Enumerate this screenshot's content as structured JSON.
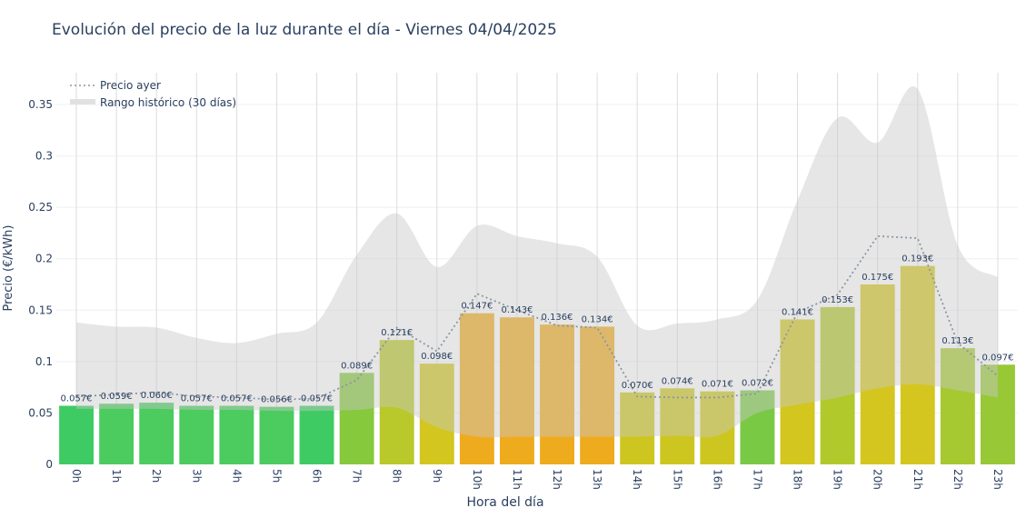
{
  "chart_data": {
    "type": "bar",
    "title": "Evolución del precio de la luz durante el día - Viernes 04/04/2025",
    "xlabel": "Hora del día",
    "ylabel": "Precio (€/kWh)",
    "ylim": [
      0,
      0.375
    ],
    "yticks": [
      0,
      0.05,
      0.1,
      0.15,
      0.2,
      0.25,
      0.3,
      0.35
    ],
    "ytick_labels": [
      "0",
      "0.05",
      "0.1",
      "0.15",
      "0.2",
      "0.25",
      "0.3",
      "0.35"
    ],
    "grid": true,
    "legend_position": "top-left",
    "categories": [
      "0h",
      "1h",
      "2h",
      "3h",
      "4h",
      "5h",
      "6h",
      "7h",
      "8h",
      "9h",
      "10h",
      "11h",
      "12h",
      "13h",
      "14h",
      "15h",
      "16h",
      "17h",
      "18h",
      "19h",
      "20h",
      "21h",
      "22h",
      "23h"
    ],
    "values": [
      0.057,
      0.059,
      0.06,
      0.057,
      0.057,
      0.056,
      0.057,
      0.089,
      0.121,
      0.098,
      0.147,
      0.143,
      0.136,
      0.134,
      0.07,
      0.074,
      0.071,
      0.072,
      0.141,
      0.153,
      0.175,
      0.193,
      0.113,
      0.097
    ],
    "labels": [
      "0.057€",
      "0.059€",
      "0.060€",
      "0.057€",
      "0.057€",
      "0.056€",
      "0.057€",
      "0.089€",
      "0.121€",
      "0.098€",
      "0.147€",
      "0.143€",
      "0.136€",
      "0.134€",
      "0.070€",
      "0.074€",
      "0.071€",
      "0.072€",
      "0.141€",
      "0.153€",
      "0.175€",
      "0.193€",
      "0.113€",
      "0.097€"
    ],
    "bar_colors": [
      "#3fcb63",
      "#4ccb5f",
      "#4ccb5f",
      "#4ccb5f",
      "#4ccb5f",
      "#4ccb5f",
      "#3fcb63",
      "#86c93c",
      "#b9c82a",
      "#d2c61f",
      "#eeab1e",
      "#eeab1e",
      "#eeab1e",
      "#eeab1e",
      "#cdc620",
      "#cdc620",
      "#cdc620",
      "#7ac944",
      "#d2c61f",
      "#b2c92b",
      "#d4c61f",
      "#d4c61f",
      "#a6c931",
      "#98c835"
    ],
    "series": [
      {
        "name": "Precio ayer",
        "type": "line",
        "style": "dotted",
        "color": "#8a96a3",
        "values": [
          0.066,
          0.068,
          0.07,
          0.066,
          0.065,
          0.063,
          0.064,
          0.082,
          0.133,
          0.11,
          0.166,
          0.15,
          0.135,
          0.133,
          0.066,
          0.065,
          0.065,
          0.069,
          0.148,
          0.165,
          0.222,
          0.22,
          0.118,
          0.086
        ]
      },
      {
        "name": "Rango histórico (30 días)",
        "type": "area-band",
        "color": "#d3d3d3",
        "upper": [
          0.138,
          0.134,
          0.133,
          0.123,
          0.118,
          0.127,
          0.138,
          0.204,
          0.244,
          0.192,
          0.232,
          0.222,
          0.215,
          0.202,
          0.135,
          0.137,
          0.141,
          0.16,
          0.257,
          0.337,
          0.313,
          0.365,
          0.213,
          0.182
        ],
        "lower": [
          0.054,
          0.054,
          0.054,
          0.053,
          0.053,
          0.052,
          0.052,
          0.053,
          0.055,
          0.036,
          0.027,
          0.027,
          0.027,
          0.027,
          0.027,
          0.028,
          0.028,
          0.05,
          0.058,
          0.065,
          0.074,
          0.078,
          0.072,
          0.065
        ]
      }
    ]
  }
}
